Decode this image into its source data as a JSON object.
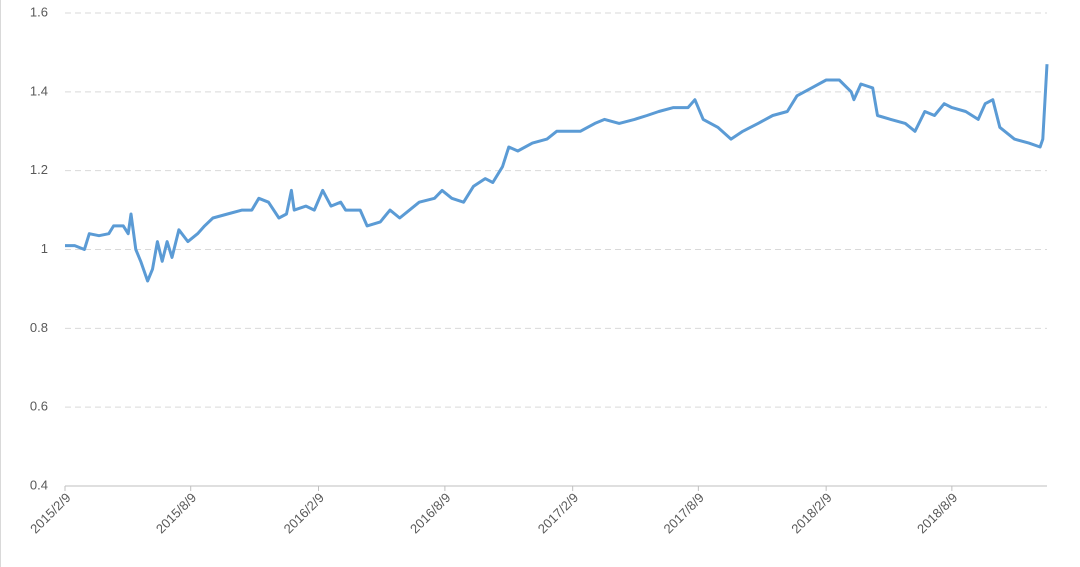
{
  "chart_data": {
    "type": "line",
    "x": [
      "2015/2/9",
      "2015/2/23",
      "2015/3/9",
      "2015/3/16",
      "2015/3/30",
      "2015/4/13",
      "2015/4/20",
      "2015/5/4",
      "2015/5/11",
      "2015/5/15",
      "2015/5/22",
      "2015/5/29",
      "2015/6/8",
      "2015/6/15",
      "2015/6/22",
      "2015/6/29",
      "2015/7/6",
      "2015/7/13",
      "2015/7/23",
      "2015/8/5",
      "2015/8/19",
      "2015/8/29",
      "2015/9/10",
      "2015/10/1",
      "2015/10/22",
      "2015/11/5",
      "2015/11/15",
      "2015/11/29",
      "2015/12/14",
      "2015/12/25",
      "2016/1/1",
      "2016/1/5",
      "2016/1/22",
      "2016/2/3",
      "2016/2/15",
      "2016/2/27",
      "2016/3/12",
      "2016/3/19",
      "2016/4/9",
      "2016/4/19",
      "2016/5/8",
      "2016/5/22",
      "2016/6/5",
      "2016/6/19",
      "2016/7/3",
      "2016/7/25",
      "2016/8/5",
      "2016/8/19",
      "2016/9/5",
      "2016/9/19",
      "2016/10/6",
      "2016/10/17",
      "2016/10/31",
      "2016/11/9",
      "2016/11/22",
      "2016/12/13",
      "2017/1/3",
      "2017/1/17",
      "2017/2/20",
      "2017/3/13",
      "2017/3/27",
      "2017/4/17",
      "2017/5/9",
      "2017/5/27",
      "2017/6/13",
      "2017/7/4",
      "2017/7/25",
      "2017/8/4",
      "2017/8/16",
      "2017/9/6",
      "2017/9/25",
      "2017/10/12",
      "2017/11/3",
      "2017/11/24",
      "2017/12/15",
      "2017/12/29",
      "2018/1/19",
      "2018/2/9",
      "2018/2/28",
      "2018/3/17",
      "2018/3/21",
      "2018/3/31",
      "2018/4/17",
      "2018/4/24",
      "2018/5/13",
      "2018/6/3",
      "2018/6/17",
      "2018/7/1",
      "2018/7/15",
      "2018/7/29",
      "2018/8/9",
      "2018/8/29",
      "2018/9/16",
      "2018/9/26",
      "2018/10/7",
      "2018/10/17",
      "2018/11/7",
      "2018/11/28",
      "2018/12/14",
      "2018/12/18",
      "2018/12/24"
    ],
    "series": [
      {
        "color": "#5b9bd5",
        "values": [
          1.01,
          1.01,
          1.0,
          1.04,
          1.035,
          1.04,
          1.06,
          1.06,
          1.04,
          1.09,
          1.0,
          0.97,
          0.92,
          0.95,
          1.02,
          0.97,
          1.02,
          0.98,
          1.05,
          1.02,
          1.04,
          1.06,
          1.08,
          1.09,
          1.1,
          1.1,
          1.13,
          1.12,
          1.08,
          1.09,
          1.15,
          1.1,
          1.11,
          1.1,
          1.15,
          1.11,
          1.12,
          1.1,
          1.1,
          1.06,
          1.07,
          1.1,
          1.08,
          1.1,
          1.12,
          1.13,
          1.15,
          1.13,
          1.12,
          1.16,
          1.18,
          1.17,
          1.21,
          1.26,
          1.25,
          1.27,
          1.28,
          1.3,
          1.3,
          1.32,
          1.33,
          1.32,
          1.33,
          1.34,
          1.35,
          1.36,
          1.36,
          1.38,
          1.33,
          1.31,
          1.28,
          1.3,
          1.32,
          1.34,
          1.35,
          1.39,
          1.41,
          1.43,
          1.43,
          1.4,
          1.38,
          1.42,
          1.41,
          1.34,
          1.33,
          1.32,
          1.3,
          1.35,
          1.34,
          1.37,
          1.36,
          1.35,
          1.33,
          1.37,
          1.38,
          1.31,
          1.28,
          1.27,
          1.26,
          1.28,
          1.47
        ]
      }
    ],
    "xlim": [
      "2015/2/9",
      "2018/12/24"
    ],
    "xticks": [
      "2015/2/9",
      "2015/8/9",
      "2016/2/9",
      "2016/8/9",
      "2017/2/9",
      "2017/8/9",
      "2018/2/9",
      "2018/8/9"
    ],
    "ylim": [
      0.4,
      1.6
    ],
    "yticks": [
      0.4,
      0.6,
      0.8,
      1,
      1.2,
      1.4,
      1.6
    ],
    "grid": true
  }
}
